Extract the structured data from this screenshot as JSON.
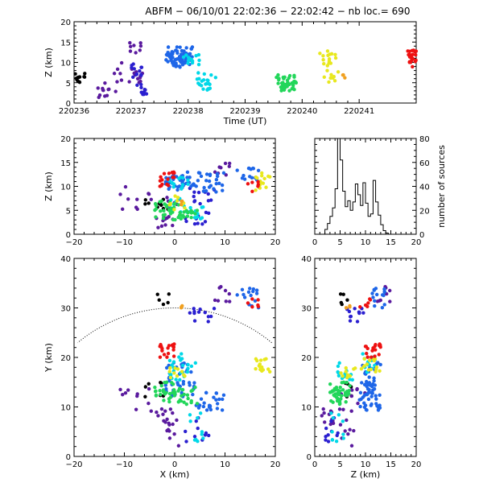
{
  "chart_data": {
    "title": "ABFM − 06/10/01 22:02:36 − 22:02:42 − nb loc.=    690",
    "panels": {
      "time_height": {
        "type": "scatter",
        "xlabel": "Time (UT)",
        "ylabel": "Z (km)",
        "xlim": [
          220236,
          220242
        ],
        "ylim": [
          0,
          20
        ],
        "xticks": [
          "220236",
          "220237",
          "220238",
          "220239",
          "220240",
          "220241"
        ],
        "yticks": [
          "0",
          "5",
          "10",
          "15",
          "20"
        ]
      },
      "x_z": {
        "type": "scatter",
        "xlabel": "",
        "ylabel": "Z (km)",
        "xlim": [
          -20,
          20
        ],
        "ylim": [
          0,
          20
        ],
        "xticks": [
          "−20",
          "−10",
          "0",
          "10",
          "20"
        ],
        "yticks": [
          "0",
          "5",
          "10",
          "15",
          "20"
        ]
      },
      "histogram": {
        "type": "line",
        "xlabel": "",
        "ylabel": "number of sources",
        "xlim": [
          0,
          20
        ],
        "ylim": [
          0,
          80
        ],
        "xticks": [
          "0",
          "5",
          "10",
          "15",
          "20"
        ],
        "yticks": [
          "0",
          "20",
          "40",
          "60",
          "80"
        ],
        "bin_edges": [
          2,
          2.5,
          3,
          3.5,
          4,
          4.5,
          5,
          5.5,
          6,
          6.5,
          7,
          7.5,
          8,
          8.5,
          9,
          9.5,
          10,
          10.5,
          11,
          11.5,
          12,
          12.5,
          13,
          13.5,
          14,
          14.5
        ],
        "counts": [
          4,
          9,
          15,
          22,
          38,
          80,
          62,
          36,
          23,
          28,
          20,
          27,
          42,
          33,
          24,
          43,
          26,
          15,
          17,
          45,
          27,
          16,
          8,
          3,
          1
        ]
      },
      "x_y": {
        "type": "scatter",
        "xlabel": "X (km)",
        "ylabel": "Y (km)",
        "xlim": [
          -20,
          20
        ],
        "ylim": [
          0,
          40
        ],
        "xticks": [
          "−20",
          "−10",
          "0",
          "10",
          "20"
        ],
        "yticks": [
          "0",
          "10",
          "20",
          "30",
          "40"
        ],
        "range_arc_radius_km": 30
      },
      "z_y": {
        "type": "scatter",
        "xlabel": "Z (km)",
        "ylabel": "",
        "xlim": [
          0,
          20
        ],
        "ylim": [
          0,
          40
        ],
        "xticks": [
          "0",
          "5",
          "10",
          "15",
          "20"
        ],
        "yticks": [
          "0",
          "10",
          "20",
          "30",
          "40"
        ]
      }
    },
    "clusters": [
      {
        "color": "#000000",
        "n": 7,
        "t0": 220236.02,
        "t1": 220236.2,
        "x": [
          -6,
          -2
        ],
        "y": [
          11,
          15
        ],
        "z": [
          6,
          8
        ]
      },
      {
        "color": "#000000",
        "n": 5,
        "t0": 220236.0,
        "t1": 220236.1,
        "x": [
          -4,
          -1
        ],
        "y": [
          30,
          33
        ],
        "z": [
          5,
          7
        ]
      },
      {
        "color": "#5a1a9e",
        "n": 12,
        "t0": 220236.4,
        "t1": 220236.75,
        "x": [
          -4,
          1
        ],
        "y": [
          6,
          10
        ],
        "z": [
          1,
          5
        ]
      },
      {
        "color": "#5a1a9e",
        "n": 10,
        "t0": 220236.7,
        "t1": 220237.1,
        "x": [
          -11,
          -3
        ],
        "y": [
          9,
          14
        ],
        "z": [
          5,
          10
        ]
      },
      {
        "color": "#5a1a9e",
        "n": 8,
        "t0": 220236.9,
        "t1": 220237.2,
        "x": [
          8,
          12
        ],
        "y": [
          31,
          35
        ],
        "z": [
          12,
          15
        ]
      },
      {
        "color": "#5a1a9e",
        "n": 8,
        "t0": 220236.9,
        "t1": 220237.2,
        "x": [
          -2,
          1
        ],
        "y": [
          2,
          8
        ],
        "z": [
          5,
          8
        ]
      },
      {
        "color": "#2a1fd0",
        "n": 12,
        "t0": 220237.0,
        "t1": 220237.2,
        "x": [
          3,
          8
        ],
        "y": [
          27,
          31
        ],
        "z": [
          6,
          10
        ]
      },
      {
        "color": "#2a1fd0",
        "n": 10,
        "t0": 220237.1,
        "t1": 220237.3,
        "x": [
          2,
          7
        ],
        "y": [
          3,
          8
        ],
        "z": [
          2,
          5
        ]
      },
      {
        "color": "#1e66e8",
        "n": 40,
        "t0": 220237.6,
        "t1": 220238.0,
        "x": [
          -2,
          4
        ],
        "y": [
          12,
          19
        ],
        "z": [
          9,
          13
        ]
      },
      {
        "color": "#1e66e8",
        "n": 25,
        "t0": 220237.7,
        "t1": 220238.05,
        "x": [
          4,
          10
        ],
        "y": [
          9,
          13
        ],
        "z": [
          8,
          13
        ]
      },
      {
        "color": "#1e66e8",
        "n": 15,
        "t0": 220237.6,
        "t1": 220238.1,
        "x": [
          12,
          17
        ],
        "y": [
          30,
          34
        ],
        "z": [
          11,
          14
        ]
      },
      {
        "color": "#00d8e8",
        "n": 12,
        "t0": 220237.9,
        "t1": 220238.2,
        "x": [
          -1,
          3
        ],
        "y": [
          17,
          21
        ],
        "z": [
          9,
          12
        ]
      },
      {
        "color": "#00d8e8",
        "n": 12,
        "t0": 220238.1,
        "t1": 220238.5,
        "x": [
          -1,
          5
        ],
        "y": [
          15,
          19
        ],
        "z": [
          4,
          8
        ]
      },
      {
        "color": "#00d8e8",
        "n": 10,
        "t0": 220238.2,
        "t1": 220238.4,
        "x": [
          3,
          6
        ],
        "y": [
          3,
          10
        ],
        "z": [
          3,
          6
        ]
      },
      {
        "color": "#22d65a",
        "n": 30,
        "t0": 220239.5,
        "t1": 220239.9,
        "x": [
          -4,
          1
        ],
        "y": [
          11,
          16
        ],
        "z": [
          3,
          7
        ]
      },
      {
        "color": "#22d65a",
        "n": 15,
        "t0": 220239.6,
        "t1": 220239.85,
        "x": [
          1,
          5
        ],
        "y": [
          10,
          14
        ],
        "z": [
          3,
          5
        ]
      },
      {
        "color": "#e8e81e",
        "n": 15,
        "t0": 220240.3,
        "t1": 220240.6,
        "x": [
          16,
          19
        ],
        "y": [
          17,
          20
        ],
        "z": [
          9,
          13
        ]
      },
      {
        "color": "#e8e81e",
        "n": 10,
        "t0": 220240.35,
        "t1": 220240.65,
        "x": [
          -1,
          2
        ],
        "y": [
          15,
          18
        ],
        "z": [
          5,
          8
        ]
      },
      {
        "color": "#f0a020",
        "n": 3,
        "t0": 220240.7,
        "t1": 220240.75,
        "x": [
          1,
          2
        ],
        "y": [
          30,
          31
        ],
        "z": [
          6,
          7
        ]
      },
      {
        "color": "#ee1111",
        "n": 18,
        "t0": 220241.85,
        "t1": 220242.0,
        "x": [
          -3,
          0
        ],
        "y": [
          20,
          23
        ],
        "z": [
          10,
          13
        ]
      },
      {
        "color": "#ee1111",
        "n": 6,
        "t0": 220241.9,
        "t1": 220242.0,
        "x": [
          14,
          17
        ],
        "y": [
          30,
          32
        ],
        "z": [
          8,
          11
        ]
      }
    ]
  }
}
